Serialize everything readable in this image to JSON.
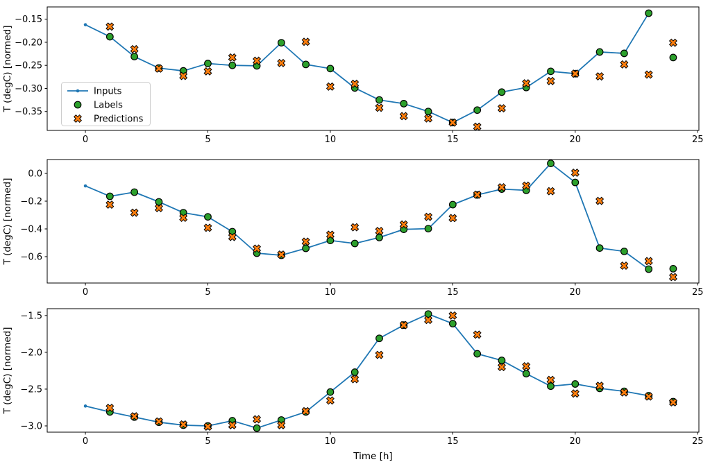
{
  "figure": {
    "background": "#ffffff",
    "xlabel": "Time [h]",
    "ylabel": "T (degC) [normed]"
  },
  "colors": {
    "inputs": "#1f77b4",
    "labels": "#2ca02c",
    "predictions": "#ff7f0e",
    "marker_edge": "#000000",
    "spine": "#000000",
    "legend_border": "#cccccc",
    "legend_bg": "#ffffff"
  },
  "legend": {
    "entries": [
      {
        "label": "Inputs",
        "marker": "line-dot-icon"
      },
      {
        "label": "Labels",
        "marker": "circle-icon"
      },
      {
        "label": "Predictions",
        "marker": "x-icon"
      }
    ]
  },
  "chart_data": [
    {
      "type": "line",
      "title": "",
      "ylabel": "T (degC) [normed]",
      "xlabel": "",
      "legend_position": "lower-left",
      "grid": false,
      "xlim": [
        -1.56,
        25.05
      ],
      "ylim": [
        -0.391,
        -0.1234
      ],
      "xticks": [
        0,
        5,
        10,
        15,
        20,
        25
      ],
      "xticklabels": [
        "0",
        "5",
        "10",
        "15",
        "20",
        "25"
      ],
      "yticks": [
        -0.15,
        -0.2,
        -0.25,
        -0.3,
        -0.35
      ],
      "yticklabels": [
        "−0.15",
        "−0.20",
        "−0.25",
        "−0.30",
        "−0.35"
      ],
      "show_legend": true,
      "series": [
        {
          "name": "Inputs",
          "style": "line-dot",
          "x": [
            0,
            1,
            2,
            3,
            4,
            5,
            6,
            7,
            8,
            9,
            10,
            11,
            12,
            13,
            14,
            15,
            16,
            17,
            18,
            19,
            20,
            21,
            22,
            23
          ],
          "y": [
            -0.162,
            -0.188,
            -0.231,
            -0.256,
            -0.262,
            -0.246,
            -0.25,
            -0.251,
            -0.201,
            -0.248,
            -0.257,
            -0.299,
            -0.325,
            -0.333,
            -0.35,
            -0.374,
            -0.347,
            -0.308,
            -0.298,
            -0.263,
            -0.268,
            -0.221,
            -0.224,
            -0.137
          ]
        },
        {
          "name": "Labels",
          "style": "scatter-circle",
          "x": [
            1,
            2,
            3,
            4,
            5,
            6,
            7,
            8,
            9,
            10,
            11,
            12,
            13,
            14,
            15,
            16,
            17,
            18,
            19,
            20,
            21,
            22,
            23,
            24
          ],
          "y": [
            -0.188,
            -0.231,
            -0.256,
            -0.262,
            -0.246,
            -0.25,
            -0.251,
            -0.201,
            -0.248,
            -0.257,
            -0.299,
            -0.325,
            -0.333,
            -0.35,
            -0.374,
            -0.347,
            -0.308,
            -0.298,
            -0.263,
            -0.268,
            -0.221,
            -0.224,
            -0.137,
            -0.233
          ]
        },
        {
          "name": "Predictions",
          "style": "scatter-x",
          "x": [
            1,
            2,
            3,
            4,
            5,
            6,
            7,
            8,
            9,
            10,
            11,
            12,
            13,
            14,
            15,
            16,
            17,
            18,
            19,
            20,
            21,
            22,
            23,
            24
          ],
          "y": [
            -0.166,
            -0.215,
            -0.257,
            -0.273,
            -0.263,
            -0.233,
            -0.24,
            -0.245,
            -0.199,
            -0.296,
            -0.29,
            -0.342,
            -0.36,
            -0.365,
            -0.374,
            -0.383,
            -0.343,
            -0.289,
            -0.284,
            -0.268,
            -0.274,
            -0.248,
            -0.27,
            -0.201
          ]
        }
      ]
    },
    {
      "type": "line",
      "title": "",
      "ylabel": "T (degC) [normed]",
      "xlabel": "",
      "grid": false,
      "xlim": [
        -1.56,
        25.05
      ],
      "ylim": [
        -0.79,
        0.1
      ],
      "xticks": [
        0,
        5,
        10,
        15,
        20,
        25
      ],
      "xticklabels": [
        "0",
        "5",
        "10",
        "15",
        "20",
        "25"
      ],
      "yticks": [
        0.0,
        -0.2,
        -0.4,
        -0.6
      ],
      "yticklabels": [
        "0.0",
        "−0.2",
        "−0.4",
        "−0.6"
      ],
      "show_legend": false,
      "series": [
        {
          "name": "Inputs",
          "style": "line-dot",
          "x": [
            0,
            1,
            2,
            3,
            4,
            5,
            6,
            7,
            8,
            9,
            10,
            11,
            12,
            13,
            14,
            15,
            16,
            17,
            18,
            19,
            20,
            21,
            22,
            23
          ],
          "y": [
            -0.09,
            -0.165,
            -0.135,
            -0.205,
            -0.283,
            -0.313,
            -0.42,
            -0.575,
            -0.59,
            -0.54,
            -0.483,
            -0.505,
            -0.462,
            -0.403,
            -0.398,
            -0.225,
            -0.155,
            -0.113,
            -0.122,
            0.072,
            -0.065,
            -0.538,
            -0.562,
            -0.69
          ]
        },
        {
          "name": "Labels",
          "style": "scatter-circle",
          "x": [
            1,
            2,
            3,
            4,
            5,
            6,
            7,
            8,
            9,
            10,
            11,
            12,
            13,
            14,
            15,
            16,
            17,
            18,
            19,
            20,
            21,
            22,
            23,
            24
          ],
          "y": [
            -0.165,
            -0.135,
            -0.205,
            -0.283,
            -0.313,
            -0.42,
            -0.575,
            -0.59,
            -0.54,
            -0.483,
            -0.505,
            -0.462,
            -0.403,
            -0.398,
            -0.225,
            -0.155,
            -0.113,
            -0.122,
            0.072,
            -0.065,
            -0.538,
            -0.562,
            -0.69,
            -0.687
          ]
        },
        {
          "name": "Predictions",
          "style": "scatter-x",
          "x": [
            1,
            2,
            3,
            4,
            5,
            6,
            7,
            8,
            9,
            10,
            11,
            12,
            13,
            14,
            15,
            16,
            17,
            18,
            19,
            20,
            21,
            22,
            23,
            24
          ],
          "y": [
            -0.225,
            -0.283,
            -0.25,
            -0.32,
            -0.392,
            -0.458,
            -0.542,
            -0.585,
            -0.492,
            -0.442,
            -0.388,
            -0.415,
            -0.368,
            -0.313,
            -0.322,
            -0.153,
            -0.1,
            -0.088,
            -0.128,
            0.005,
            -0.198,
            -0.665,
            -0.632,
            -0.747
          ]
        }
      ]
    },
    {
      "type": "line",
      "title": "",
      "ylabel": "T (degC) [normed]",
      "xlabel": "Time [h]",
      "grid": false,
      "xlim": [
        -1.56,
        25.05
      ],
      "ylim": [
        -3.085,
        -1.407
      ],
      "xticks": [
        0,
        5,
        10,
        15,
        20,
        25
      ],
      "xticklabels": [
        "0",
        "5",
        "10",
        "15",
        "20",
        "25"
      ],
      "yticks": [
        -1.5,
        -2.0,
        -2.5,
        -3.0
      ],
      "yticklabels": [
        "−1.5",
        "−2.0",
        "−2.5",
        "−3.0"
      ],
      "show_legend": false,
      "series": [
        {
          "name": "Inputs",
          "style": "line-dot",
          "x": [
            0,
            1,
            2,
            3,
            4,
            5,
            6,
            7,
            8,
            9,
            10,
            11,
            12,
            13,
            14,
            15,
            16,
            17,
            18,
            19,
            20,
            21,
            22,
            23
          ],
          "y": [
            -2.73,
            -2.81,
            -2.88,
            -2.95,
            -2.99,
            -3.0,
            -2.93,
            -3.03,
            -2.92,
            -2.81,
            -2.54,
            -2.27,
            -1.81,
            -1.63,
            -1.48,
            -1.61,
            -2.02,
            -2.11,
            -2.29,
            -2.46,
            -2.43,
            -2.49,
            -2.53,
            -2.59
          ]
        },
        {
          "name": "Labels",
          "style": "scatter-circle",
          "x": [
            1,
            2,
            3,
            4,
            5,
            6,
            7,
            8,
            9,
            10,
            11,
            12,
            13,
            14,
            15,
            16,
            17,
            18,
            19,
            20,
            21,
            22,
            23,
            24
          ],
          "y": [
            -2.81,
            -2.88,
            -2.95,
            -2.99,
            -3.0,
            -2.93,
            -3.03,
            -2.92,
            -2.81,
            -2.54,
            -2.27,
            -1.81,
            -1.63,
            -1.48,
            -1.61,
            -2.02,
            -2.11,
            -2.29,
            -2.46,
            -2.43,
            -2.49,
            -2.53,
            -2.59,
            -2.67
          ]
        },
        {
          "name": "Predictions",
          "style": "scatter-x",
          "x": [
            1,
            2,
            3,
            4,
            5,
            6,
            7,
            8,
            9,
            10,
            11,
            12,
            13,
            14,
            15,
            16,
            17,
            18,
            19,
            20,
            21,
            22,
            23,
            24
          ],
          "y": [
            -2.755,
            -2.87,
            -2.94,
            -2.98,
            -3.01,
            -2.99,
            -2.91,
            -2.99,
            -2.8,
            -2.655,
            -2.365,
            -2.035,
            -1.63,
            -1.56,
            -1.5,
            -1.76,
            -2.2,
            -2.19,
            -2.375,
            -2.56,
            -2.455,
            -2.545,
            -2.6,
            -2.68
          ]
        }
      ]
    }
  ]
}
